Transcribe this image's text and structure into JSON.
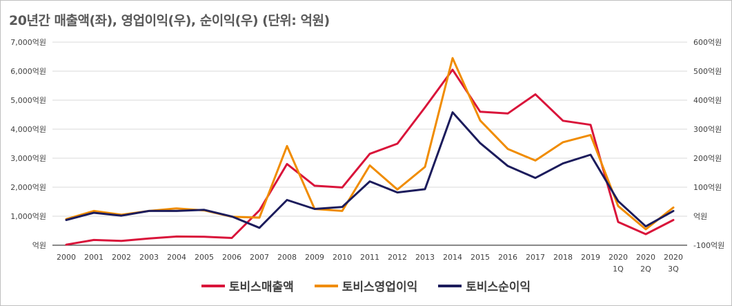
{
  "chart_data": {
    "type": "line",
    "title": "20년간 매출액(좌), 영업이익(우), 순이익(우) (단위: 억원)",
    "categories": [
      "2000",
      "2001",
      "2002",
      "2003",
      "2004",
      "2005",
      "2006",
      "2007",
      "2008",
      "2009",
      "2010",
      "2011",
      "2012",
      "2013",
      "2014",
      "2015",
      "2016",
      "2017",
      "2018",
      "2019",
      "2020\n1Q",
      "2020\n2Q",
      "2020\n3Q"
    ],
    "left_axis": {
      "ylim": [
        0,
        7000
      ],
      "ticks": [
        0,
        1000,
        2000,
        3000,
        4000,
        5000,
        6000,
        7000
      ],
      "tick_labels": [
        "억원",
        "1,000억원",
        "2,000억원",
        "3,000억원",
        "4,000억원",
        "5,000억원",
        "6,000억원",
        "7,000억원"
      ]
    },
    "right_axis": {
      "ylim": [
        -100,
        600
      ],
      "ticks": [
        -100,
        0,
        100,
        200,
        300,
        400,
        500,
        600
      ],
      "tick_labels": [
        "-100억원",
        "억원",
        "100억원",
        "200억원",
        "300억원",
        "400억원",
        "500억원",
        "600억원"
      ]
    },
    "series": [
      {
        "name": "토비스매출액",
        "axis": "left",
        "color": "#d9143a",
        "values": [
          20,
          180,
          150,
          230,
          300,
          290,
          250,
          1200,
          2800,
          2050,
          1990,
          3150,
          3500,
          4750,
          6050,
          4600,
          4540,
          5200,
          4290,
          4150,
          800,
          380,
          870
        ]
      },
      {
        "name": "토비스영업이익",
        "axis": "right",
        "color": "#f08c00",
        "values": [
          -10,
          18,
          5,
          18,
          27,
          20,
          -2,
          -5,
          242,
          25,
          18,
          175,
          92,
          170,
          545,
          330,
          232,
          192,
          255,
          280,
          35,
          -45,
          30
        ]
      },
      {
        "name": "토비스순이익",
        "axis": "right",
        "color": "#1c1c5c",
        "values": [
          -13,
          12,
          2,
          18,
          18,
          22,
          -1,
          -40,
          56,
          25,
          32,
          120,
          82,
          93,
          358,
          252,
          173,
          132,
          182,
          212,
          52,
          -35,
          18
        ]
      }
    ]
  }
}
